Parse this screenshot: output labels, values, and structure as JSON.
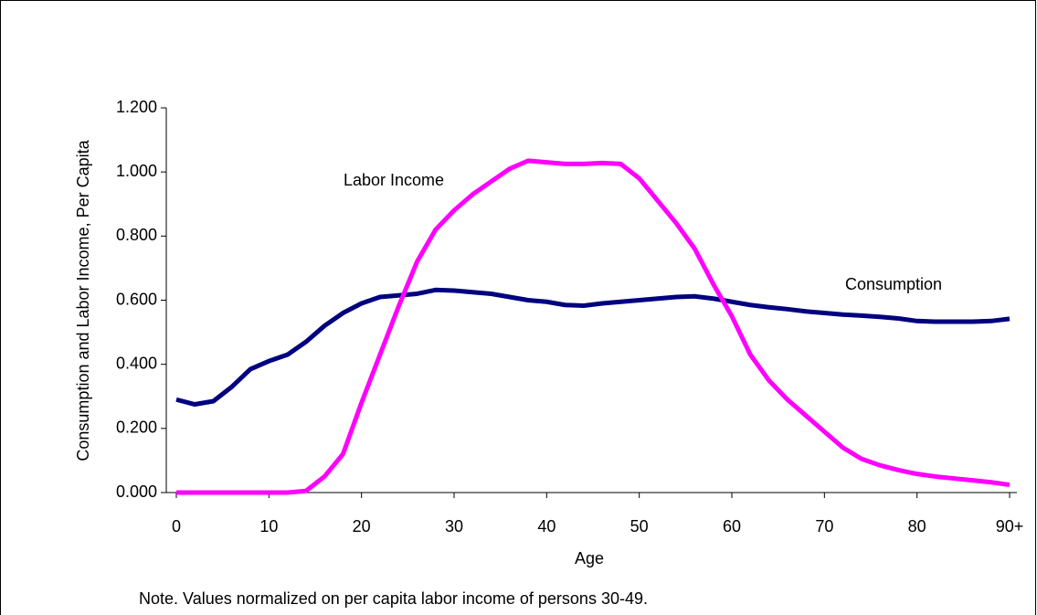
{
  "chart_data": {
    "type": "line",
    "x_label": "Age",
    "y_label": "Consumption and Labor Income, Per Capita",
    "note": "Note. Values normalized on per capita labor income of persons 30-49.",
    "x": [
      0,
      2,
      4,
      6,
      8,
      10,
      12,
      14,
      16,
      18,
      20,
      22,
      24,
      26,
      28,
      30,
      32,
      34,
      36,
      38,
      40,
      42,
      44,
      46,
      48,
      50,
      52,
      54,
      56,
      58,
      60,
      62,
      64,
      66,
      68,
      70,
      72,
      74,
      76,
      78,
      80,
      82,
      84,
      86,
      88,
      90
    ],
    "series": [
      {
        "name": "Consumption",
        "color": "#000080",
        "values": [
          0.29,
          0.275,
          0.285,
          0.33,
          0.385,
          0.41,
          0.43,
          0.47,
          0.52,
          0.56,
          0.59,
          0.61,
          0.615,
          0.62,
          0.632,
          0.63,
          0.625,
          0.62,
          0.61,
          0.6,
          0.595,
          0.585,
          0.583,
          0.59,
          0.595,
          0.6,
          0.605,
          0.61,
          0.612,
          0.605,
          0.595,
          0.585,
          0.578,
          0.572,
          0.565,
          0.56,
          0.555,
          0.552,
          0.548,
          0.543,
          0.535,
          0.533,
          0.533,
          0.533,
          0.535,
          0.542
        ]
      },
      {
        "name": "Labor Income",
        "color": "#ff00ff",
        "values": [
          0,
          0,
          0,
          0,
          0,
          0,
          0,
          0.005,
          0.05,
          0.12,
          0.28,
          0.43,
          0.58,
          0.72,
          0.82,
          0.88,
          0.93,
          0.97,
          1.01,
          1.035,
          1.03,
          1.025,
          1.025,
          1.028,
          1.025,
          0.98,
          0.91,
          0.84,
          0.76,
          0.65,
          0.55,
          0.43,
          0.35,
          0.29,
          0.24,
          0.19,
          0.14,
          0.105,
          0.085,
          0.07,
          0.058,
          0.05,
          0.044,
          0.038,
          0.032,
          0.024
        ]
      }
    ],
    "xlim": [
      0,
      90
    ],
    "xticks": [
      0,
      10,
      20,
      30,
      40,
      50,
      60,
      70,
      80,
      {
        "value": 90,
        "label": "90+"
      }
    ],
    "ylim": [
      0,
      1.2
    ],
    "yticks": [
      {
        "value": 0,
        "label": "0.000"
      },
      {
        "value": 0.2,
        "label": "0.200"
      },
      {
        "value": 0.4,
        "label": "0.400"
      },
      {
        "value": 0.6,
        "label": "0.600"
      },
      {
        "value": 0.8,
        "label": "0.800"
      },
      {
        "value": 1,
        "label": "1.000"
      },
      {
        "value": 1.2,
        "label": "1.200"
      }
    ],
    "grid": false
  }
}
